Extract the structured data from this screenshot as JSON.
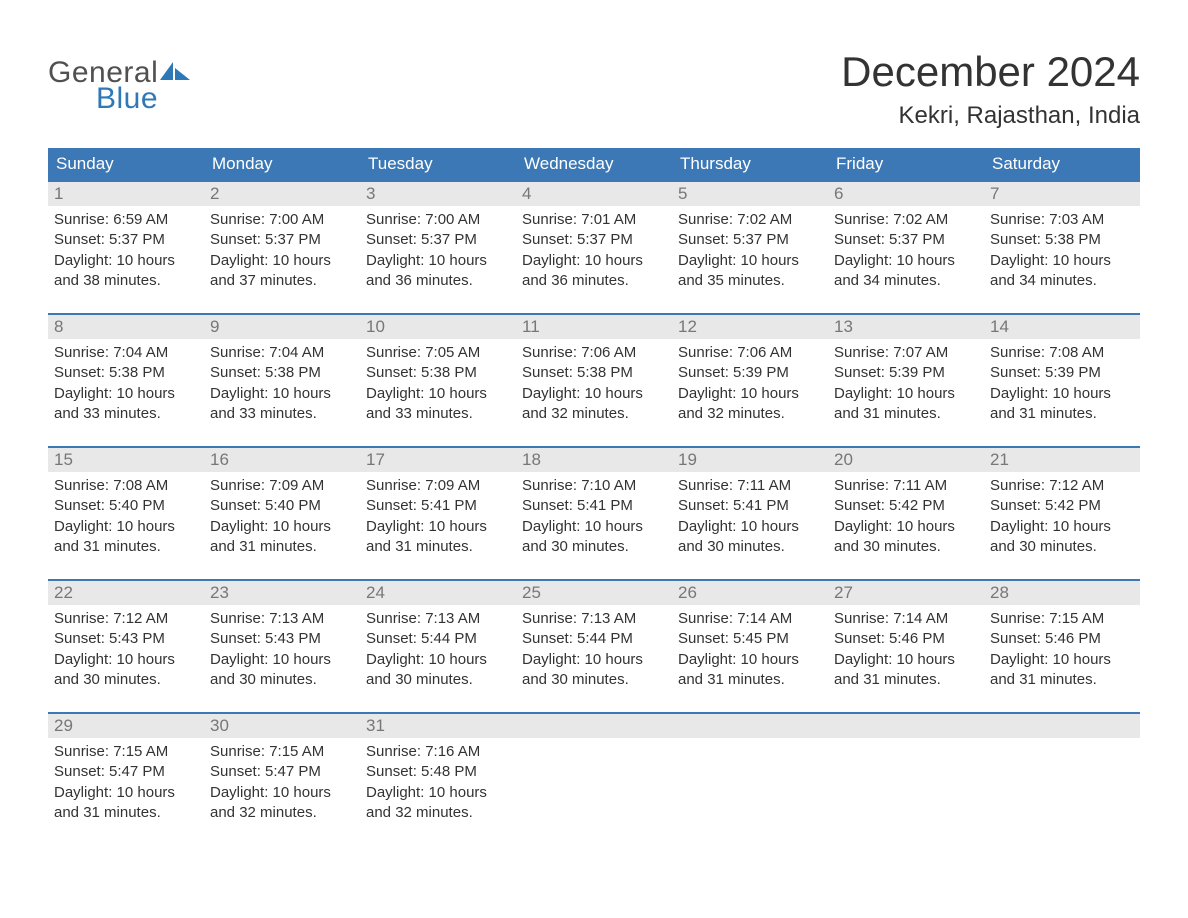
{
  "logo": {
    "part1": "General",
    "part2": "Blue"
  },
  "title": "December 2024",
  "subtitle": "Kekri, Rajasthan, India",
  "colors": {
    "header_bg": "#3b78b5",
    "header_text": "#ffffff",
    "daynum_bg": "#e8e8e8",
    "daynum_text": "#777777",
    "body_text": "#333333",
    "rule": "#3b78b5",
    "logo_gray": "#505050",
    "logo_blue": "#2f78b7"
  },
  "day_names": [
    "Sunday",
    "Monday",
    "Tuesday",
    "Wednesday",
    "Thursday",
    "Friday",
    "Saturday"
  ],
  "weeks": [
    [
      {
        "n": "1",
        "sunrise": "6:59 AM",
        "sunset": "5:37 PM",
        "daylight": "10 hours and 38 minutes."
      },
      {
        "n": "2",
        "sunrise": "7:00 AM",
        "sunset": "5:37 PM",
        "daylight": "10 hours and 37 minutes."
      },
      {
        "n": "3",
        "sunrise": "7:00 AM",
        "sunset": "5:37 PM",
        "daylight": "10 hours and 36 minutes."
      },
      {
        "n": "4",
        "sunrise": "7:01 AM",
        "sunset": "5:37 PM",
        "daylight": "10 hours and 36 minutes."
      },
      {
        "n": "5",
        "sunrise": "7:02 AM",
        "sunset": "5:37 PM",
        "daylight": "10 hours and 35 minutes."
      },
      {
        "n": "6",
        "sunrise": "7:02 AM",
        "sunset": "5:37 PM",
        "daylight": "10 hours and 34 minutes."
      },
      {
        "n": "7",
        "sunrise": "7:03 AM",
        "sunset": "5:38 PM",
        "daylight": "10 hours and 34 minutes."
      }
    ],
    [
      {
        "n": "8",
        "sunrise": "7:04 AM",
        "sunset": "5:38 PM",
        "daylight": "10 hours and 33 minutes."
      },
      {
        "n": "9",
        "sunrise": "7:04 AM",
        "sunset": "5:38 PM",
        "daylight": "10 hours and 33 minutes."
      },
      {
        "n": "10",
        "sunrise": "7:05 AM",
        "sunset": "5:38 PM",
        "daylight": "10 hours and 33 minutes."
      },
      {
        "n": "11",
        "sunrise": "7:06 AM",
        "sunset": "5:38 PM",
        "daylight": "10 hours and 32 minutes."
      },
      {
        "n": "12",
        "sunrise": "7:06 AM",
        "sunset": "5:39 PM",
        "daylight": "10 hours and 32 minutes."
      },
      {
        "n": "13",
        "sunrise": "7:07 AM",
        "sunset": "5:39 PM",
        "daylight": "10 hours and 31 minutes."
      },
      {
        "n": "14",
        "sunrise": "7:08 AM",
        "sunset": "5:39 PM",
        "daylight": "10 hours and 31 minutes."
      }
    ],
    [
      {
        "n": "15",
        "sunrise": "7:08 AM",
        "sunset": "5:40 PM",
        "daylight": "10 hours and 31 minutes."
      },
      {
        "n": "16",
        "sunrise": "7:09 AM",
        "sunset": "5:40 PM",
        "daylight": "10 hours and 31 minutes."
      },
      {
        "n": "17",
        "sunrise": "7:09 AM",
        "sunset": "5:41 PM",
        "daylight": "10 hours and 31 minutes."
      },
      {
        "n": "18",
        "sunrise": "7:10 AM",
        "sunset": "5:41 PM",
        "daylight": "10 hours and 30 minutes."
      },
      {
        "n": "19",
        "sunrise": "7:11 AM",
        "sunset": "5:41 PM",
        "daylight": "10 hours and 30 minutes."
      },
      {
        "n": "20",
        "sunrise": "7:11 AM",
        "sunset": "5:42 PM",
        "daylight": "10 hours and 30 minutes."
      },
      {
        "n": "21",
        "sunrise": "7:12 AM",
        "sunset": "5:42 PM",
        "daylight": "10 hours and 30 minutes."
      }
    ],
    [
      {
        "n": "22",
        "sunrise": "7:12 AM",
        "sunset": "5:43 PM",
        "daylight": "10 hours and 30 minutes."
      },
      {
        "n": "23",
        "sunrise": "7:13 AM",
        "sunset": "5:43 PM",
        "daylight": "10 hours and 30 minutes."
      },
      {
        "n": "24",
        "sunrise": "7:13 AM",
        "sunset": "5:44 PM",
        "daylight": "10 hours and 30 minutes."
      },
      {
        "n": "25",
        "sunrise": "7:13 AM",
        "sunset": "5:44 PM",
        "daylight": "10 hours and 30 minutes."
      },
      {
        "n": "26",
        "sunrise": "7:14 AM",
        "sunset": "5:45 PM",
        "daylight": "10 hours and 31 minutes."
      },
      {
        "n": "27",
        "sunrise": "7:14 AM",
        "sunset": "5:46 PM",
        "daylight": "10 hours and 31 minutes."
      },
      {
        "n": "28",
        "sunrise": "7:15 AM",
        "sunset": "5:46 PM",
        "daylight": "10 hours and 31 minutes."
      }
    ],
    [
      {
        "n": "29",
        "sunrise": "7:15 AM",
        "sunset": "5:47 PM",
        "daylight": "10 hours and 31 minutes."
      },
      {
        "n": "30",
        "sunrise": "7:15 AM",
        "sunset": "5:47 PM",
        "daylight": "10 hours and 32 minutes."
      },
      {
        "n": "31",
        "sunrise": "7:16 AM",
        "sunset": "5:48 PM",
        "daylight": "10 hours and 32 minutes."
      },
      {
        "empty": true
      },
      {
        "empty": true
      },
      {
        "empty": true
      },
      {
        "empty": true
      }
    ]
  ],
  "labels": {
    "sunrise": "Sunrise: ",
    "sunset": "Sunset: ",
    "daylight": "Daylight: "
  }
}
